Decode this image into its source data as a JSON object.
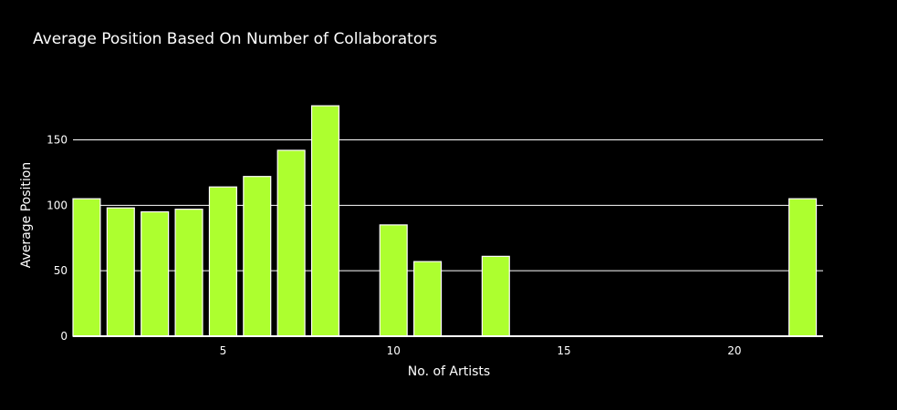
{
  "chart_data": {
    "type": "bar",
    "title": "Average Position Based On Number of Collaborators",
    "xlabel": "No. of Artists",
    "ylabel": "Average Position",
    "x": [
      1,
      2,
      3,
      4,
      5,
      6,
      7,
      8,
      10,
      11,
      13,
      22
    ],
    "values": [
      105,
      98,
      95,
      97,
      114,
      122,
      142,
      176,
      85,
      57,
      61,
      105
    ],
    "xlim": [
      0.6,
      22.6
    ],
    "ylim": [
      0,
      190
    ],
    "xticks": [
      5,
      10,
      15,
      20
    ],
    "yticks": [
      0,
      50,
      100,
      150
    ],
    "grid": true,
    "colors": {
      "background": "#000000",
      "bar": "#adff2f",
      "bar_border": "#ffffff",
      "grid": "#ffffff",
      "text": "#ffffff"
    }
  }
}
